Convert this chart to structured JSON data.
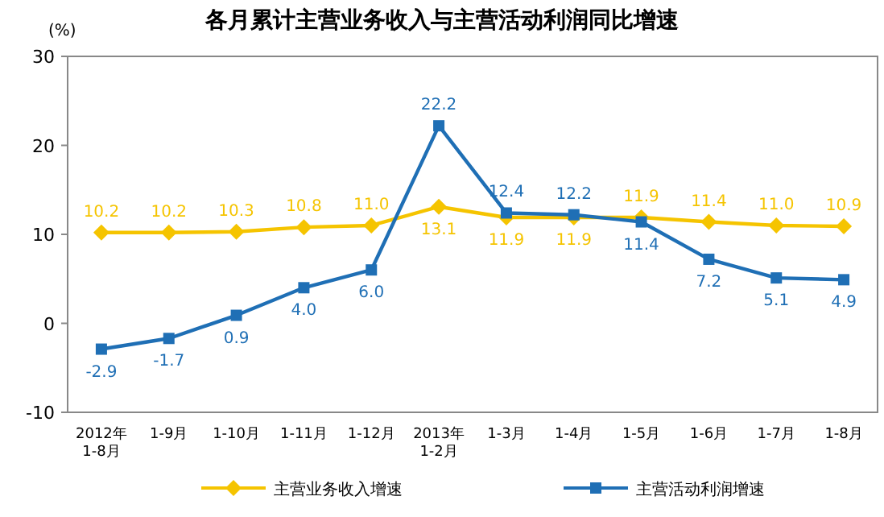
{
  "chart_data": {
    "type": "line",
    "title": "各月累计主营业务收入与主营活动利润同比增速",
    "ylabel": "(%)",
    "categories": [
      "2012年\n1-8月",
      "1-9月",
      "1-10月",
      "1-11月",
      "1-12月",
      "2013年\n1-2月",
      "1-3月",
      "1-4月",
      "1-5月",
      "1-6月",
      "1-7月",
      "1-8月"
    ],
    "series": [
      {
        "name": "主营业务收入增速",
        "color": "#f5c400",
        "marker": "diamond",
        "values": [
          10.2,
          10.2,
          10.3,
          10.8,
          11.0,
          13.1,
          11.9,
          11.9,
          11.9,
          11.4,
          11.0,
          10.9
        ],
        "value_labels": [
          "10.2",
          "10.2",
          "10.3",
          "10.8",
          "11.0",
          "13.1",
          "11.9",
          "11.9",
          "11.9",
          "11.4",
          "11.0",
          "10.9"
        ]
      },
      {
        "name": "主营活动利润增速",
        "color": "#1f6fb5",
        "marker": "square",
        "values": [
          -2.9,
          -1.7,
          0.9,
          4.0,
          6.0,
          22.2,
          12.4,
          12.2,
          11.4,
          7.2,
          5.1,
          4.9
        ],
        "value_labels": [
          "-2.9",
          "-1.7",
          "0.9",
          "4.0",
          "6.0",
          "22.2",
          "12.4",
          "12.2",
          "11.4",
          "7.2",
          "5.1",
          "4.9"
        ]
      }
    ],
    "ylim": [
      -10,
      30
    ],
    "yticks": [
      -10,
      0,
      10,
      20,
      30
    ],
    "legend": "bottom",
    "grid": false
  }
}
